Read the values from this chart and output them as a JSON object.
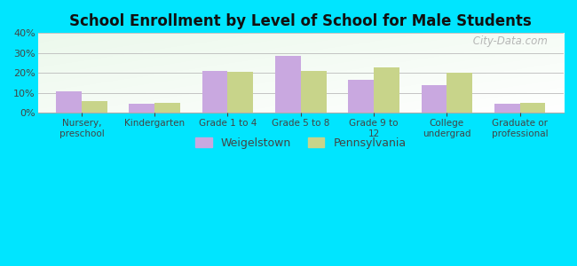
{
  "title": "School Enrollment by Level of School for Male Students",
  "categories": [
    "Nursery,\npreschool",
    "Kindergarten",
    "Grade 1 to 4",
    "Grade 5 to 8",
    "Grade 9 to\n12",
    "College\nundergrad",
    "Graduate or\nprofessional"
  ],
  "weigelstown": [
    11,
    4.5,
    21,
    28.5,
    16.5,
    14,
    4.5
  ],
  "pennsylvania": [
    6,
    5,
    20.5,
    21,
    23,
    20,
    5
  ],
  "color_weigelstown": "#c9a8e0",
  "color_pennsylvania": "#c8d48a",
  "background_outer": "#00e5ff",
  "ylim": [
    0,
    40
  ],
  "yticks": [
    0,
    10,
    20,
    30,
    40
  ],
  "bar_width": 0.35,
  "legend_labels": [
    "Weigelstown",
    "Pennsylvania"
  ],
  "watermark": " City-Data.com"
}
